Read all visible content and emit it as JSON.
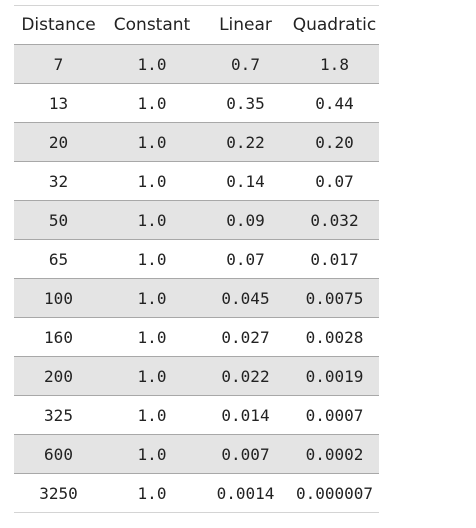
{
  "table": {
    "headers": [
      "Distance",
      "Constant",
      "Linear",
      "Quadratic"
    ],
    "rows": [
      [
        "7",
        "1.0",
        "0.7",
        "1.8"
      ],
      [
        "13",
        "1.0",
        "0.35",
        "0.44"
      ],
      [
        "20",
        "1.0",
        "0.22",
        "0.20"
      ],
      [
        "32",
        "1.0",
        "0.14",
        "0.07"
      ],
      [
        "50",
        "1.0",
        "0.09",
        "0.032"
      ],
      [
        "65",
        "1.0",
        "0.07",
        "0.017"
      ],
      [
        "100",
        "1.0",
        "0.045",
        "0.0075"
      ],
      [
        "160",
        "1.0",
        "0.027",
        "0.0028"
      ],
      [
        "200",
        "1.0",
        "0.022",
        "0.0019"
      ],
      [
        "325",
        "1.0",
        "0.014",
        "0.0007"
      ],
      [
        "600",
        "1.0",
        "0.007",
        "0.0002"
      ],
      [
        "3250",
        "1.0",
        "0.0014",
        "0.000007"
      ]
    ]
  }
}
